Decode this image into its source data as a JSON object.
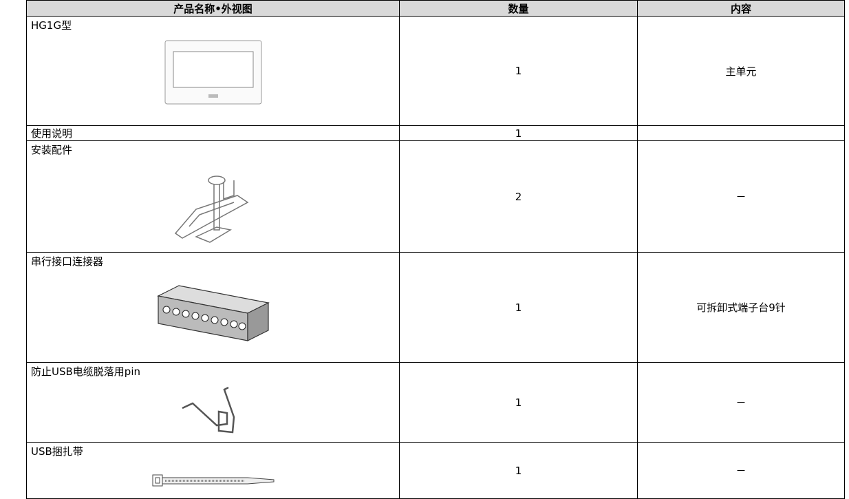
{
  "table": {
    "header": [
      "产品名称•外视图",
      "数量",
      "内容"
    ],
    "rows": [
      {
        "name": "HG1G型",
        "quantity": "1",
        "content": "主单元"
      },
      {
        "name": "使用说明",
        "quantity": "1"
      },
      {
        "name": "安装配件",
        "quantity": "2",
        "content": "－"
      },
      {
        "name": "串行接口连接器",
        "quantity": "1",
        "content": "可拆卸式端子台9针"
      },
      {
        "name": "防止USB电缆脱落用pin",
        "quantity": "1",
        "content": "－"
      },
      {
        "name": "USB捆扎带",
        "quantity": "1",
        "content": "－"
      }
    ]
  }
}
